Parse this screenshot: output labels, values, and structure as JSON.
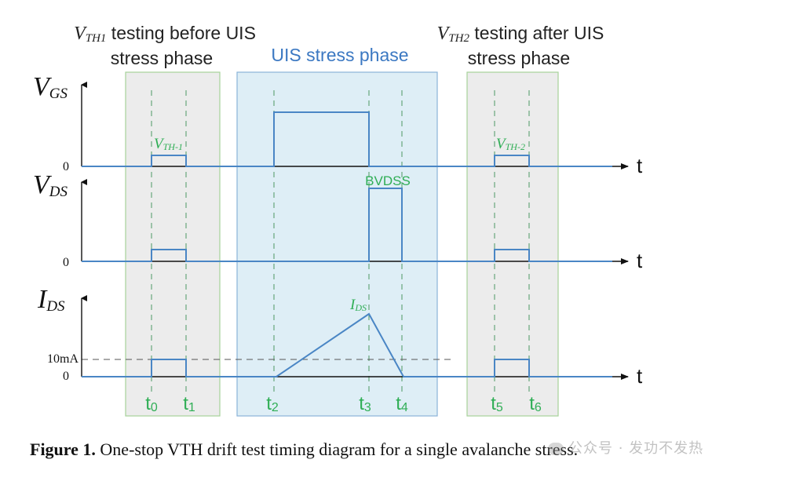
{
  "phases": {
    "pre": {
      "title_symbol": "V",
      "title_subscript": "TH1",
      "title_line1_rest": " testing before UIS",
      "title_line2": "stress phase"
    },
    "uis": {
      "title": "UIS stress phase"
    },
    "post": {
      "title_symbol": "V",
      "title_subscript": "TH2",
      "title_line1_rest": " testing after UIS",
      "title_line2": "stress phase"
    }
  },
  "signals": {
    "vgs": {
      "symbol": "V",
      "subscript": "GS",
      "zero_label": "0",
      "pulse1_symbol": "V",
      "pulse1_subscript": "TH-1",
      "pulse2_symbol": "V",
      "pulse2_subscript": "TH-2"
    },
    "vds": {
      "symbol": "V",
      "subscript": "DS",
      "zero_label": "0",
      "pulse_label": "BVDSS"
    },
    "ids": {
      "symbol": "I",
      "subscript": "DS",
      "zero_label": "0",
      "level_label": "10mA",
      "peak_symbol": "I",
      "peak_subscript": "DS"
    }
  },
  "time_axis_label": "t",
  "time_markers": [
    {
      "base": "t",
      "sub": "0"
    },
    {
      "base": "t",
      "sub": "1"
    },
    {
      "base": "t",
      "sub": "2"
    },
    {
      "base": "t",
      "sub": "3"
    },
    {
      "base": "t",
      "sub": "4"
    },
    {
      "base": "t",
      "sub": "5"
    },
    {
      "base": "t",
      "sub": "6"
    }
  ],
  "caption": {
    "label": "Figure 1.",
    "text": " One-stop VTH drift test timing diagram for a single avalanche stress."
  },
  "watermark": {
    "text": "公众号 · 发功不发热"
  },
  "colors": {
    "signal": "#4a86c5",
    "green": "#2fae55",
    "uis_fill": "#deeef6",
    "uis_border": "#8ab3d8",
    "uis_title": "#3b78c2",
    "phase_fill": "#ececec",
    "phase_border": "#a6d39a",
    "guide": "#5aa070"
  }
}
